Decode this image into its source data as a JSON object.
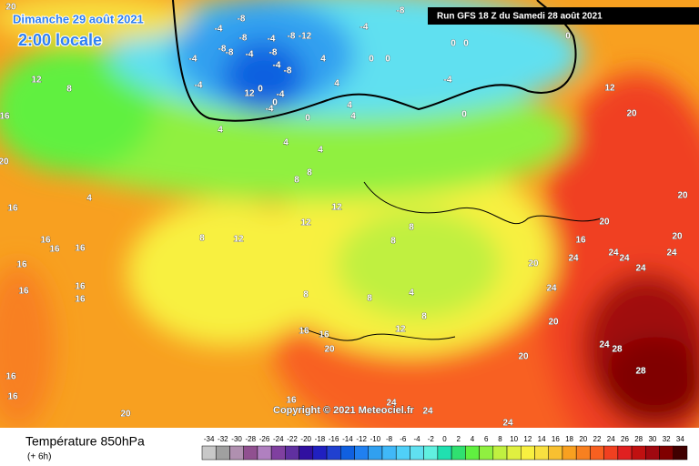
{
  "header": {
    "date": "Dimanche 29 août 2021",
    "time": "2:00 locale",
    "run": "Run GFS 18 Z du Samedi 28 août 2021",
    "copyright": "Copyright © 2021 Meteociel.fr"
  },
  "legend": {
    "title": "Température 850hPa",
    "lead": "(+ 6h)",
    "ticks": [
      -34,
      -32,
      -30,
      -28,
      -26,
      -24,
      -22,
      -20,
      -18,
      -16,
      -14,
      -12,
      -10,
      -8,
      -6,
      -4,
      -2,
      0,
      2,
      4,
      6,
      8,
      10,
      12,
      14,
      16,
      18,
      20,
      22,
      24,
      26,
      28,
      30,
      32,
      34
    ],
    "colors": [
      "#c8c8c8",
      "#a0a0a0",
      "#b090b0",
      "#905090",
      "#b080c0",
      "#8040a0",
      "#6030a0",
      "#3010a0",
      "#2020c0",
      "#2040d0",
      "#1060e0",
      "#2080f0",
      "#30a0f0",
      "#40b8f8",
      "#50d0f8",
      "#60e0f0",
      "#60f0e0",
      "#20e0b0",
      "#30e070",
      "#60f040",
      "#90f040",
      "#c0f040",
      "#e0f040",
      "#f8f040",
      "#f8e040",
      "#f8c030",
      "#f8a020",
      "#f88020",
      "#f86020",
      "#f04020",
      "#e02020",
      "#c01010",
      "#a00810",
      "#800000",
      "#400000"
    ]
  },
  "map_labels": [
    20,
    12,
    8,
    16,
    20,
    16,
    16,
    16,
    16,
    16,
    16,
    16,
    16,
    16,
    16,
    20,
    -8,
    -4,
    -8,
    -8,
    -4,
    -8,
    -12,
    -4,
    -8,
    -4,
    -8,
    -4,
    -8,
    12,
    0,
    0,
    -4,
    -4,
    4,
    4,
    4,
    4,
    4,
    0,
    0,
    0,
    -4,
    -8,
    0,
    0,
    -4,
    0,
    0,
    12,
    20,
    20,
    20,
    16,
    24,
    24,
    24,
    24,
    20,
    20,
    24,
    24,
    20,
    24,
    28,
    28,
    20,
    24,
    24,
    24,
    16,
    16,
    16,
    20,
    12,
    8,
    8,
    8,
    8,
    12,
    12,
    12,
    4,
    8,
    8,
    4,
    4,
    8,
    8,
    4,
    -4
  ]
}
